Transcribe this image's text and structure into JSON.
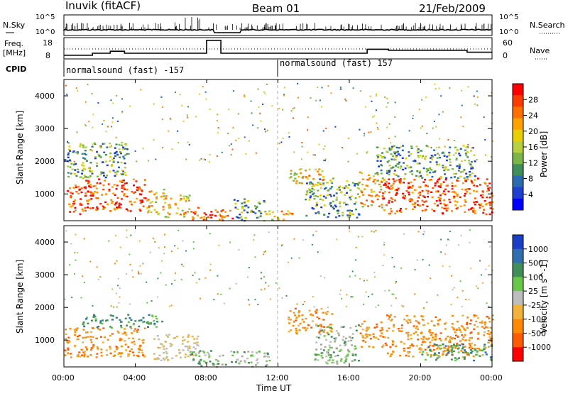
{
  "header": {
    "station": "Inuvik (fitACF)",
    "beam": "Beam 01",
    "date": "21/Feb/2009"
  },
  "nsky_panel": {
    "left_label": "N.Sky",
    "left_ticks": [
      "10^5",
      "10^0"
    ],
    "right_label": "N.Search",
    "right_ticks": [
      "10^5",
      "10^0"
    ]
  },
  "freq_panel": {
    "left_label_line1": "Freq.",
    "left_label_line2": "[MHz]",
    "left_ticks": [
      "18",
      "8"
    ],
    "right_label": "Nave",
    "right_ticks": [
      "60",
      "0"
    ]
  },
  "cpid": {
    "label": "CPID",
    "segments": [
      {
        "text": "normalsound (fast) -157",
        "start_hour": 0
      },
      {
        "text": "normalsound (fast) 157",
        "start_hour": 12
      }
    ]
  },
  "power_panel": {
    "ylabel": "Slant Range [km]",
    "yticks": [
      "4000",
      "3000",
      "2000",
      "1000"
    ],
    "colorbar_label": "Power [dB]",
    "colorbar_ticks": [
      "28",
      "24",
      "20",
      "16",
      "12",
      "8",
      "4"
    ],
    "colorbar_colors": [
      "#ff0000",
      "#ff3b00",
      "#ff7000",
      "#ffa200",
      "#e8d000",
      "#b8d040",
      "#7ab648",
      "#3f8f5a",
      "#2c6bb0",
      "#1f3fcf",
      "#0000ff"
    ]
  },
  "velocity_panel": {
    "ylabel": "Slant Range [km]",
    "yticks": [
      "4000",
      "3000",
      "2000",
      "1000"
    ],
    "colorbar_label": "Velocity [m s^-1]",
    "colorbar_ticks": [
      "1000",
      "500",
      "100",
      "25",
      "-25",
      "-100",
      "-500",
      "-1000"
    ],
    "colorbar_colors": [
      "#1a3fc7",
      "#2f6fb0",
      "#3f8f5a",
      "#67c84a",
      "#bdbdbd",
      "#f2b23c",
      "#ff8a00",
      "#ff5a00",
      "#ff0000"
    ]
  },
  "x_axis": {
    "ticks": [
      "00:00",
      "04:00",
      "08:00",
      "12:00",
      "16:00",
      "20:00",
      "00:00"
    ],
    "label": "Time UT"
  },
  "chart_data": {
    "type": "heatmap",
    "xlim_hours": [
      0,
      24
    ],
    "ylim_km": [
      180,
      4500
    ],
    "freq_mhz": [
      {
        "from": 0,
        "to": 1.6,
        "value": 9.5
      },
      {
        "from": 1.6,
        "to": 2.6,
        "value": 10.5
      },
      {
        "from": 2.6,
        "to": 3.4,
        "value": 11.5
      },
      {
        "from": 3.4,
        "to": 8.0,
        "value": 10.5
      },
      {
        "from": 8.0,
        "to": 8.8,
        "value": 17.0
      },
      {
        "from": 8.8,
        "to": 17.0,
        "value": 10.5
      },
      {
        "from": 17.0,
        "to": 18.2,
        "value": 12.5
      },
      {
        "from": 18.2,
        "to": 22.6,
        "value": 12.0
      },
      {
        "from": 22.6,
        "to": 24,
        "value": 11.0
      }
    ],
    "power_regions": [
      {
        "t0": 0.0,
        "t1": 1.2,
        "r0": 400,
        "r1": 1300,
        "level": "high"
      },
      {
        "t0": 1.2,
        "t1": 4.6,
        "r0": 500,
        "r1": 1500,
        "level": "high"
      },
      {
        "t0": 4.6,
        "t1": 5.6,
        "r0": 400,
        "r1": 1200,
        "level": "medium"
      },
      {
        "t0": 5.6,
        "t1": 7.0,
        "r0": 300,
        "r1": 1000,
        "level": "medium"
      },
      {
        "t0": 7.0,
        "t1": 9.5,
        "r0": 200,
        "r1": 600,
        "level": "high"
      },
      {
        "t0": 9.5,
        "t1": 11.2,
        "r0": 200,
        "r1": 900,
        "level": "low"
      },
      {
        "t0": 11.2,
        "t1": 12.8,
        "r0": 200,
        "r1": 500,
        "level": "medium"
      },
      {
        "t0": 12.6,
        "t1": 14.6,
        "r0": 1300,
        "r1": 1800,
        "level": "medium"
      },
      {
        "t0": 13.5,
        "t1": 16.5,
        "r0": 300,
        "r1": 1500,
        "level": "low"
      },
      {
        "t0": 16.5,
        "t1": 17.8,
        "r0": 600,
        "r1": 1700,
        "level": "medium"
      },
      {
        "t0": 17.8,
        "t1": 24.0,
        "r0": 400,
        "r1": 1500,
        "level": "high"
      },
      {
        "t0": 0.0,
        "t1": 3.5,
        "r0": 1500,
        "r1": 2600,
        "level": "low"
      },
      {
        "t0": 17.5,
        "t1": 23.0,
        "r0": 1500,
        "r1": 2500,
        "level": "low"
      }
    ],
    "velocity_regions": [
      {
        "t0": 0.0,
        "t1": 4.5,
        "r0": 500,
        "r1": 1400,
        "class": "-100"
      },
      {
        "t0": 1.0,
        "t1": 5.5,
        "r0": 1400,
        "r1": 1800,
        "class": "100"
      },
      {
        "t0": 5.0,
        "t1": 7.5,
        "r0": 400,
        "r1": 1200,
        "class": "-25"
      },
      {
        "t0": 7.0,
        "t1": 11.5,
        "r0": 200,
        "r1": 700,
        "class": "25"
      },
      {
        "t0": 12.5,
        "t1": 15.0,
        "r0": 1200,
        "r1": 2000,
        "class": "-100"
      },
      {
        "t0": 14.0,
        "t1": 16.5,
        "r0": 300,
        "r1": 1500,
        "class": "25"
      },
      {
        "t0": 16.5,
        "t1": 18.0,
        "r0": 800,
        "r1": 1600,
        "class": "-100"
      },
      {
        "t0": 18.0,
        "t1": 24.0,
        "r0": 500,
        "r1": 1800,
        "class": "-100"
      },
      {
        "t0": 20.0,
        "t1": 24.0,
        "r0": 400,
        "r1": 900,
        "class": "100"
      }
    ]
  }
}
